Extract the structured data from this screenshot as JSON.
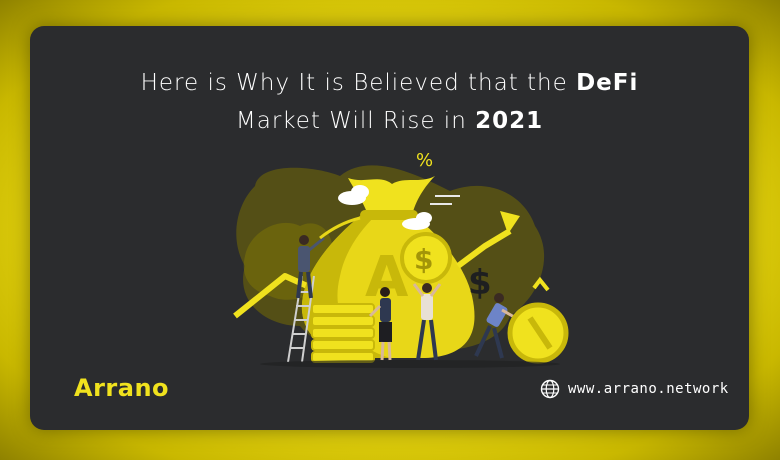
{
  "title": {
    "line1_prefix": "Here is Why It is Believed that the ",
    "line1_bold": "DeFi",
    "line2_prefix": "Market Will Rise in ",
    "line2_bold": "2021"
  },
  "brand": {
    "name": "Arrano"
  },
  "footer": {
    "website": "www.arrano.network",
    "icon": "globe-icon"
  },
  "illustration": {
    "percent_symbol": "%",
    "dollar_symbol": "$",
    "colors": {
      "accent": "#f0e21e",
      "background": "#2b2c2e",
      "dark_yellow": "#7a7208"
    }
  }
}
